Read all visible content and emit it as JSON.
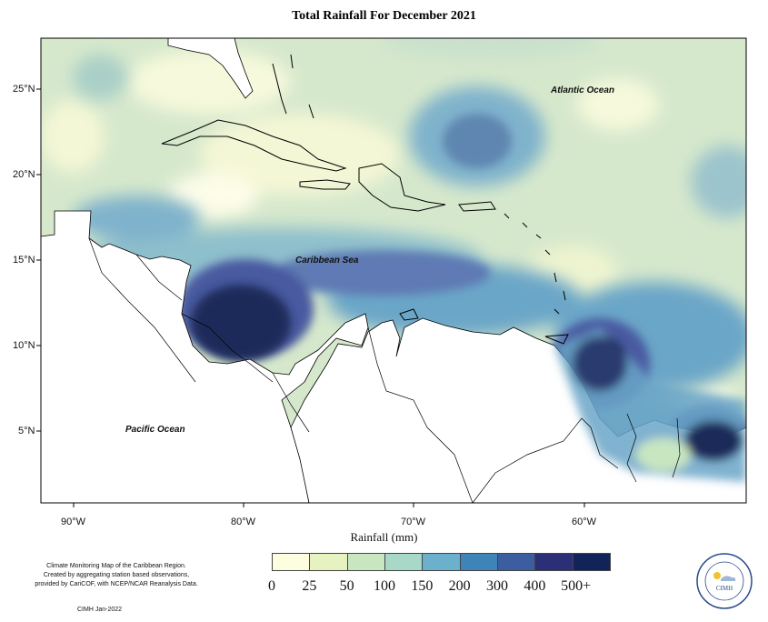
{
  "title": "Total Rainfall For December 2021",
  "map": {
    "lat_labels": [
      "25°N",
      "20°N",
      "15°N",
      "10°N",
      "5°N"
    ],
    "lon_labels": [
      "90°W",
      "80°W",
      "70°W",
      "60°W"
    ],
    "x_label": "Rainfall (mm)",
    "ocean_labels": {
      "atlantic": "Atlantic Ocean",
      "caribbean": "Caribbean Sea",
      "pacific": "Pacific Ocean"
    }
  },
  "legend": {
    "ticks": [
      "0",
      "25",
      "50",
      "100",
      "150",
      "200",
      "300",
      "400",
      "500+"
    ],
    "colors": [
      "#fdfde0",
      "#e6f2c0",
      "#c8e6c0",
      "#a8d8c8",
      "#6bb0cc",
      "#3f84b8",
      "#3c5da0",
      "#2a2f78",
      "#12235a"
    ]
  },
  "footnote": {
    "line1": "Climate Monitoring Map of the Caribbean Region.",
    "line2": "Created by aggregating station based observations,",
    "line3": "provided by CariCOF, with NCEP/NCAR Reanalysis Data.",
    "credit": "CIMH  Jan-2022"
  },
  "logo": {
    "text": "CIMH",
    "ring_text": "Caribbean Institute for Meteorology and Hydrology"
  }
}
